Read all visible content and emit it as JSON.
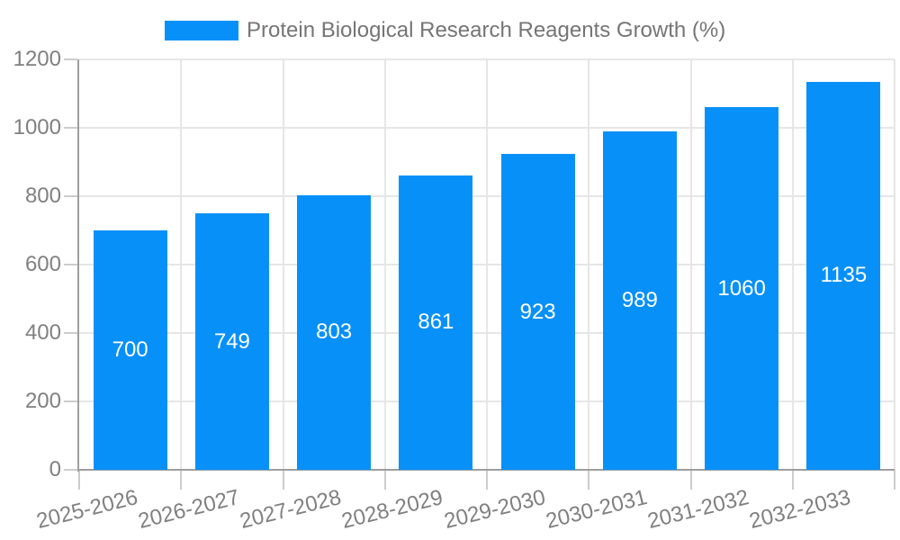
{
  "legend": {
    "label": "Protein Biological Research Reagents Growth (%)"
  },
  "chart_data": {
    "type": "bar",
    "title": "Protein Biological Research Reagents Growth (%)",
    "categories": [
      "2025-2026",
      "2026-2027",
      "2027-2028",
      "2028-2029",
      "2029-2030",
      "2030-2031",
      "2031-2032",
      "2032-2033"
    ],
    "values": [
      700,
      749,
      803,
      861,
      923,
      989,
      1060,
      1135
    ],
    "xlabel": "",
    "ylabel": "",
    "ylim": [
      0,
      1200
    ],
    "ytick_step": 200,
    "yticks": [
      0,
      200,
      400,
      600,
      800,
      1000,
      1200
    ],
    "grid": true,
    "legend_position": "top",
    "value_labels": "centered-white-inside-bars",
    "x_label_rotation_deg": -14,
    "colors": {
      "bar": "#0890f9",
      "gridline": "#e6e6e6",
      "axis_line": "#9e9e9e",
      "tick": "#cccccc",
      "axis_label_text": "#808080",
      "legend_text": "#757575",
      "value_label_text": "#ffffff",
      "background": "#ffffff"
    }
  }
}
